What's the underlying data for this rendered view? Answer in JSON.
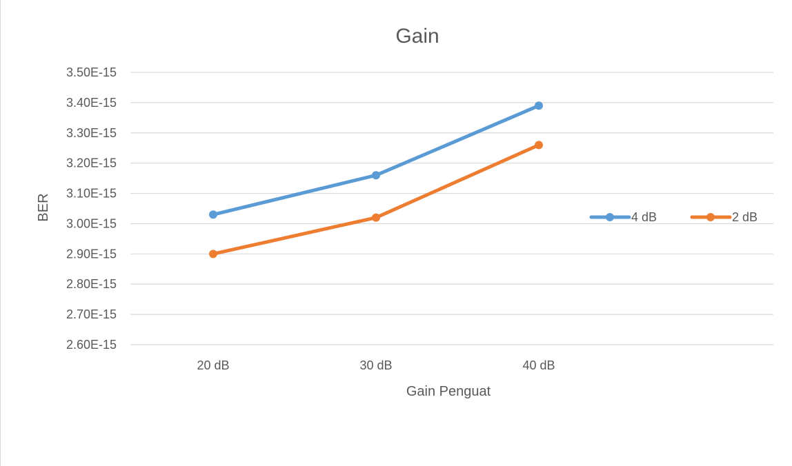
{
  "chart_data": {
    "type": "line",
    "title": "Gain",
    "xlabel": "Gain Penguat",
    "ylabel": "BER",
    "categories": [
      "20 dB",
      "30 dB",
      "40 dB"
    ],
    "ylim": [
      2.6e-15,
      3.5e-15
    ],
    "yticks": [
      3.5e-15,
      3.4e-15,
      3.3e-15,
      3.2e-15,
      3.1e-15,
      3e-15,
      2.9e-15,
      2.8e-15,
      2.7e-15,
      2.6e-15
    ],
    "ytick_labels": [
      "3.50E-15",
      "3.40E-15",
      "3.30E-15",
      "3.20E-15",
      "3.10E-15",
      "3.00E-15",
      "2.90E-15",
      "2.80E-15",
      "2.70E-15",
      "2.60E-15"
    ],
    "grid": true,
    "legend": "right",
    "series": [
      {
        "name": "4 dB",
        "color": "#5b9bd5",
        "values": [
          3.03e-15,
          3.16e-15,
          3.39e-15
        ]
      },
      {
        "name": "2 dB",
        "color": "#ed7d31",
        "values": [
          2.9e-15,
          3.02e-15,
          3.26e-15
        ]
      }
    ]
  }
}
